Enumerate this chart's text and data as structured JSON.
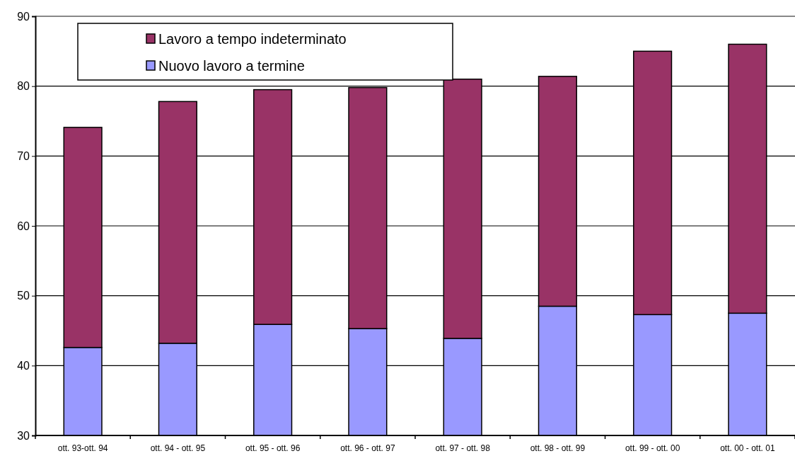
{
  "chart_data": {
    "type": "bar",
    "stacked": true,
    "categories": [
      "ott. 93-ott. 94",
      "ott. 94 - ott. 95",
      "ott. 95 - ott. 96",
      "ott. 96 - ott. 97",
      "ott. 97 - ott. 98",
      "ott. 98 - ott. 99",
      "ott. 99 - ott. 00",
      "ott. 00 - ott. 01"
    ],
    "series": [
      {
        "name": "Nuovo lavoro a termine",
        "color": "#9999ff",
        "values": [
          42.6,
          43.2,
          45.9,
          45.3,
          43.9,
          48.5,
          47.3,
          47.5
        ]
      },
      {
        "name": "Lavoro a tempo indeterminato",
        "color": "#993366",
        "values": [
          31.5,
          34.6,
          33.6,
          34.5,
          37.1,
          32.9,
          37.7,
          38.5
        ]
      }
    ],
    "ylim": [
      30,
      90
    ],
    "yticks": [
      30,
      40,
      50,
      60,
      70,
      80,
      90
    ],
    "grid": "y",
    "legend": "top left"
  }
}
